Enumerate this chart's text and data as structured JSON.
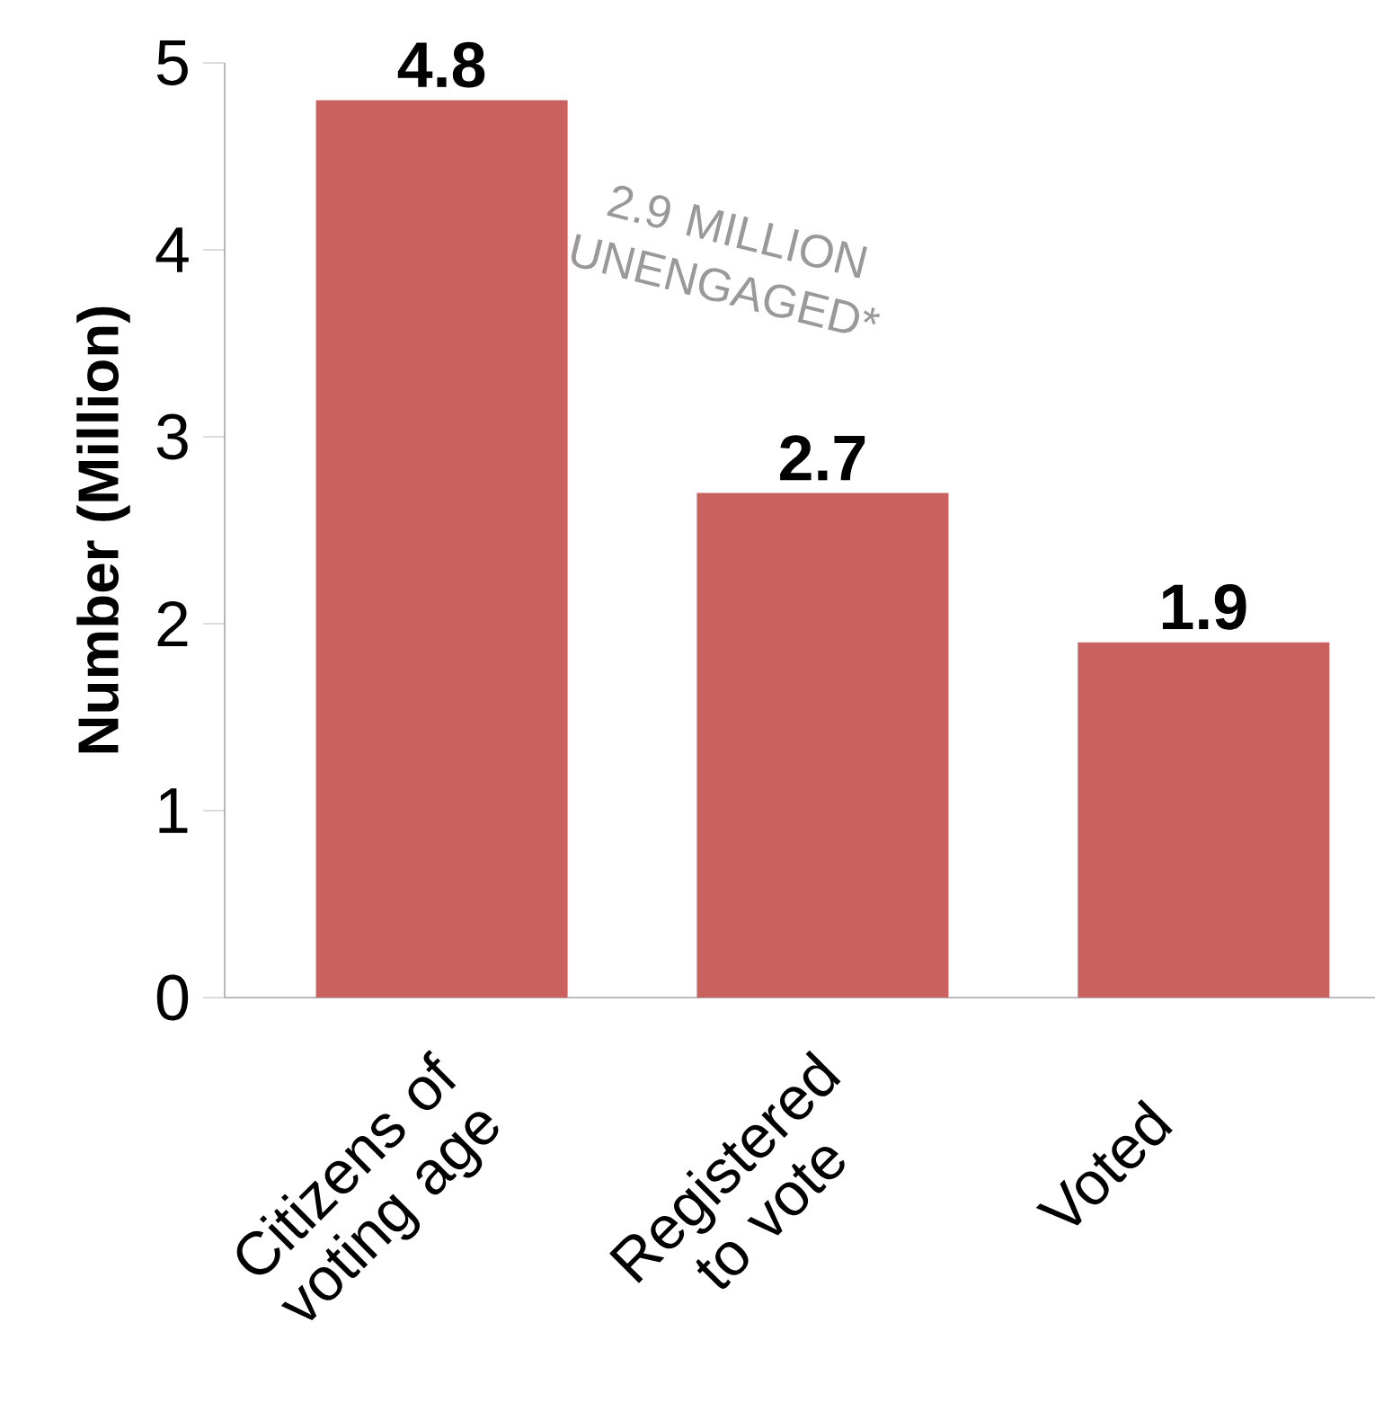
{
  "chart_data": {
    "type": "bar",
    "ylabel": "Number (Million)",
    "categories": [
      "Citizens of voting age",
      "Registered to vote",
      "Voted"
    ],
    "values": [
      4.8,
      2.7,
      1.9
    ],
    "color": "#c9625f",
    "ylim": [
      0,
      5
    ],
    "yticks": [
      0,
      1,
      2,
      3,
      4,
      5
    ],
    "grid": false,
    "data_labels": true,
    "annotations": [
      "2.9 MILLION UNENGAGED*"
    ]
  }
}
